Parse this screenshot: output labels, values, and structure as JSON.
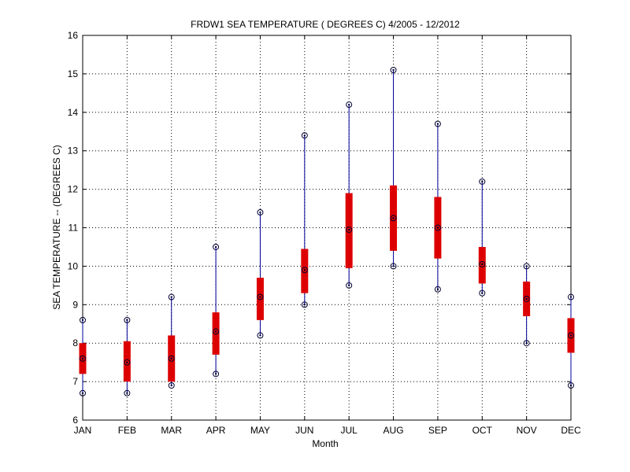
{
  "chart_data": {
    "type": "box",
    "title": "FRDW1  SEA TEMPERATURE ( DEGREES C) 4/2005 - 12/2012",
    "xlabel": "Month",
    "ylabel": "SEA TEMPERATURE -- (DEGREES C)",
    "ylim": [
      6,
      16
    ],
    "yticks": [
      6,
      7,
      8,
      9,
      10,
      11,
      12,
      13,
      14,
      15,
      16
    ],
    "grid": true,
    "categories": [
      "JAN",
      "FEB",
      "MAR",
      "APR",
      "MAY",
      "JUN",
      "JUL",
      "AUG",
      "SEP",
      "OCT",
      "NOV",
      "DEC"
    ],
    "min": [
      6.7,
      6.7,
      6.9,
      7.2,
      8.2,
      9.0,
      9.5,
      10.0,
      9.4,
      9.3,
      8.0,
      6.9
    ],
    "q1": [
      7.2,
      7.0,
      7.0,
      7.7,
      8.6,
      9.3,
      9.95,
      10.4,
      10.2,
      9.55,
      8.7,
      7.75
    ],
    "median": [
      7.6,
      7.5,
      7.6,
      8.3,
      9.2,
      9.9,
      10.95,
      11.25,
      11.0,
      10.05,
      9.15,
      8.2
    ],
    "q3": [
      8.0,
      8.05,
      8.2,
      8.8,
      9.7,
      10.45,
      11.9,
      12.1,
      11.8,
      10.5,
      9.6,
      8.65
    ],
    "max": [
      8.6,
      8.6,
      9.2,
      10.5,
      11.4,
      13.4,
      14.2,
      15.1,
      13.7,
      12.2,
      10.0,
      9.2
    ],
    "colors": {
      "box": "#dd0000",
      "whisker": "#000099",
      "marker": "#000033",
      "grid": "#000000",
      "axis": "#000000"
    }
  }
}
